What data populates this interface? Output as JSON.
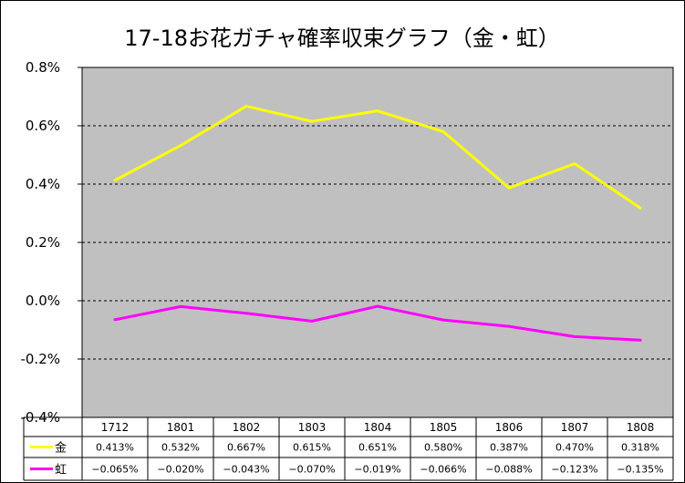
{
  "chart_data": {
    "type": "line",
    "title": "17-18お花ガチャ確率収束グラフ（金・虹）",
    "xlabel": "",
    "ylabel": "",
    "categories": [
      "1712",
      "1801",
      "1802",
      "1803",
      "1804",
      "1805",
      "1806",
      "1807",
      "1808"
    ],
    "series": [
      {
        "name": "金",
        "color": "#ffff00",
        "values": [
          0.413,
          0.532,
          0.667,
          0.615,
          0.651,
          0.58,
          0.387,
          0.47,
          0.318
        ],
        "labels": [
          "0.413%",
          "0.532%",
          "0.667%",
          "0.615%",
          "0.651%",
          "0.580%",
          "0.387%",
          "0.470%",
          "0.318%"
        ]
      },
      {
        "name": "虹",
        "color": "#ff00ff",
        "values": [
          -0.065,
          -0.02,
          -0.043,
          -0.07,
          -0.019,
          -0.066,
          -0.088,
          -0.123,
          -0.135
        ],
        "labels": [
          "−0.065%",
          "−0.020%",
          "−0.043%",
          "−0.070%",
          "−0.019%",
          "−0.066%",
          "−0.088%",
          "−0.123%",
          "−0.135%"
        ]
      }
    ],
    "ylim": [
      -0.4,
      0.8
    ],
    "yticks": [
      0.8,
      0.6,
      0.4,
      0.2,
      0.0,
      -0.2,
      -0.4
    ],
    "ytick_labels": [
      "0.8%",
      "0.6%",
      "0.4%",
      "0.2%",
      "0.0%",
      "-0.2%",
      "-0.4%"
    ],
    "grid": true,
    "plot_background": "#c0c0c0",
    "legend": "data-table-below"
  }
}
